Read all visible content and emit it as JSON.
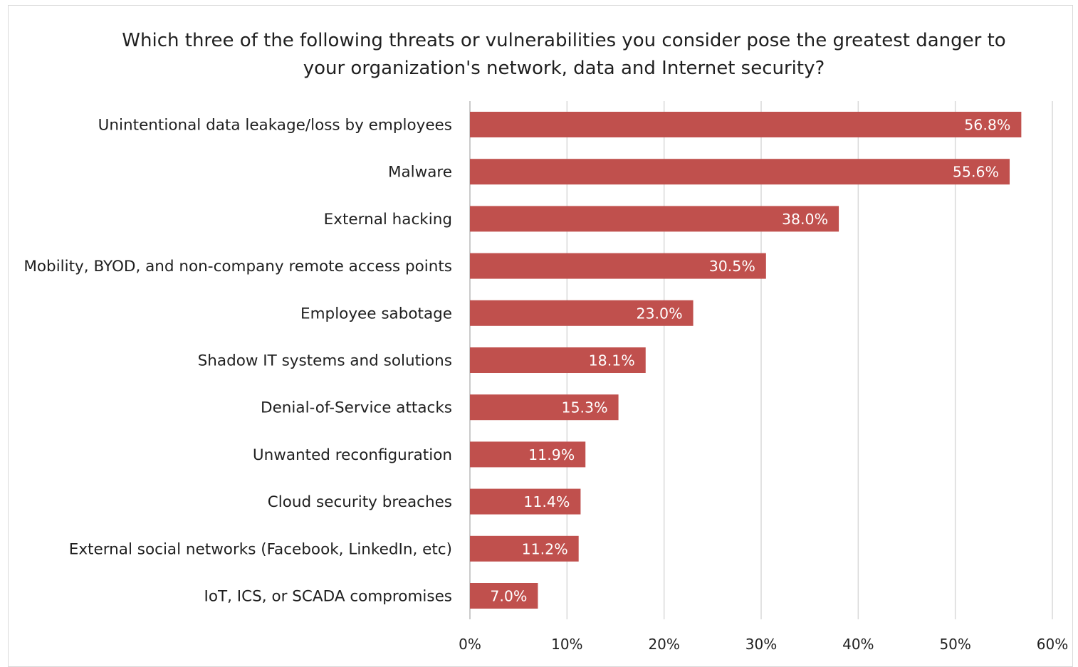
{
  "chart_data": {
    "type": "bar",
    "orientation": "horizontal",
    "title_lines": [
      "Which three of the following threats or vulnerabilities you consider pose the greatest danger to",
      "your organization's network, data and Internet security?"
    ],
    "categories": [
      "Unintentional data leakage/loss by employees",
      "Malware",
      "External hacking",
      "Mobility, BYOD, and non-company remote access points",
      "Employee sabotage",
      "Shadow IT systems and solutions",
      "Denial-of-Service attacks",
      "Unwanted reconfiguration",
      "Cloud security breaches",
      "External social networks (Facebook, LinkedIn, etc)",
      "IoT, ICS, or SCADA compromises"
    ],
    "values": [
      56.8,
      55.6,
      38.0,
      30.5,
      23.0,
      18.1,
      15.3,
      11.9,
      11.4,
      11.2,
      7.0
    ],
    "data_labels": [
      "56.8%",
      "55.6%",
      "38.0%",
      "30.5%",
      "23.0%",
      "18.1%",
      "15.3%",
      "11.9%",
      "11.4%",
      "11.2%",
      "7.0%"
    ],
    "xlim": [
      0,
      60
    ],
    "x_ticks": [
      0,
      10,
      20,
      30,
      40,
      50,
      60
    ],
    "x_tick_labels": [
      "0%",
      "10%",
      "20%",
      "30%",
      "40%",
      "50%",
      "60%"
    ],
    "xlabel": "",
    "ylabel": "",
    "grid": "vertical",
    "legend": "none",
    "colors": {
      "bar": "#c0504d",
      "grid": "#d9d9d9",
      "data_label": "#ffffff"
    }
  }
}
